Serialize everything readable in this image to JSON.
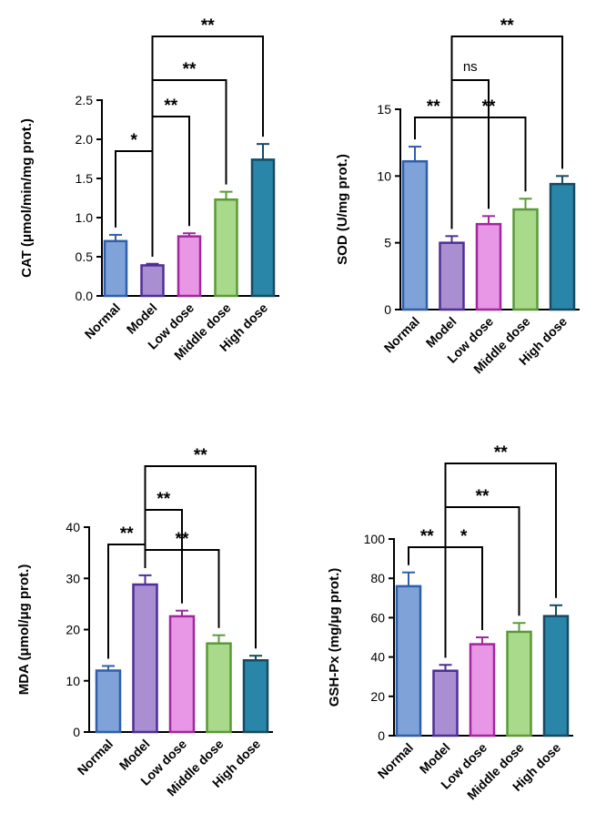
{
  "colors": {
    "fills": [
      "#7fa3d8",
      "#a98ed2",
      "#e896e6",
      "#a9d98a",
      "#2a86a8"
    ],
    "edges": [
      "#2f5eaa",
      "#4d2f97",
      "#a2279e",
      "#5a9a37",
      "#164a63"
    ]
  },
  "chart_data": [
    {
      "type": "bar",
      "name": "cat",
      "categories": [
        "Normal",
        "Model",
        "Low dose",
        "Middle dose",
        "High dose"
      ],
      "values": [
        0.7,
        0.39,
        0.76,
        1.23,
        1.74
      ],
      "errors": [
        0.08,
        0.02,
        0.04,
        0.1,
        0.2
      ],
      "ylabel": "CAT (μmol/min/mg prot.)",
      "ylim": [
        0,
        2.5
      ],
      "yticks": [
        "0.0",
        "0.5",
        "1.0",
        "1.5",
        "2.0",
        "2.5"
      ],
      "annotations": [
        {
          "from": 0,
          "to": 1,
          "label": "*"
        },
        {
          "from": 1,
          "to": 2,
          "label": "**"
        },
        {
          "from": 1,
          "to": 3,
          "label": "**"
        },
        {
          "from": 1,
          "to": 4,
          "label": "**"
        }
      ]
    },
    {
      "type": "bar",
      "name": "sod",
      "categories": [
        "Normal",
        "Model",
        "Low dose",
        "Middle dose",
        "High dose"
      ],
      "values": [
        11.1,
        5.0,
        6.4,
        7.5,
        9.4
      ],
      "errors": [
        1.1,
        0.5,
        0.6,
        0.8,
        0.6
      ],
      "ylabel": "SOD (U/mg prot.)",
      "ylim": [
        0,
        15
      ],
      "yticks": [
        "0",
        "5",
        "10",
        "15"
      ],
      "annotations": [
        {
          "from": 0,
          "to": 1,
          "label": "**"
        },
        {
          "from": 1,
          "to": 3,
          "label": "**"
        },
        {
          "from": 1,
          "to": 2,
          "label": "ns"
        },
        {
          "from": 1,
          "to": 4,
          "label": "**"
        }
      ]
    },
    {
      "type": "bar",
      "name": "mda",
      "categories": [
        "Normal",
        "Model",
        "Low dose",
        "Middle dose",
        "High dose"
      ],
      "values": [
        12.0,
        28.8,
        22.6,
        17.3,
        14.0
      ],
      "errors": [
        0.9,
        1.8,
        1.1,
        1.6,
        0.9
      ],
      "ylabel": "MDA (μmol/μg prot.)",
      "ylim": [
        0,
        40
      ],
      "yticks": [
        "0",
        "10",
        "20",
        "30",
        "40"
      ],
      "annotations": [
        {
          "from": 0,
          "to": 1,
          "label": "**"
        },
        {
          "from": 1,
          "to": 3,
          "label": "**"
        },
        {
          "from": 1,
          "to": 2,
          "label": "**"
        },
        {
          "from": 1,
          "to": 4,
          "label": "**"
        }
      ]
    },
    {
      "type": "bar",
      "name": "gshpx",
      "categories": [
        "Normal",
        "Model",
        "Low dose",
        "Middle dose",
        "High dose"
      ],
      "values": [
        76.0,
        33.0,
        46.5,
        52.8,
        60.8
      ],
      "errors": [
        7.0,
        3.0,
        3.5,
        4.5,
        5.5
      ],
      "ylabel": "GSH-Px (mg/μg prot.)",
      "ylim": [
        0,
        100
      ],
      "yticks": [
        "0",
        "20",
        "40",
        "60",
        "80",
        "100"
      ],
      "annotations": [
        {
          "from": 0,
          "to": 1,
          "label": "**"
        },
        {
          "from": 1,
          "to": 2,
          "label": "*"
        },
        {
          "from": 1,
          "to": 3,
          "label": "**"
        },
        {
          "from": 1,
          "to": 4,
          "label": "**"
        }
      ]
    }
  ]
}
